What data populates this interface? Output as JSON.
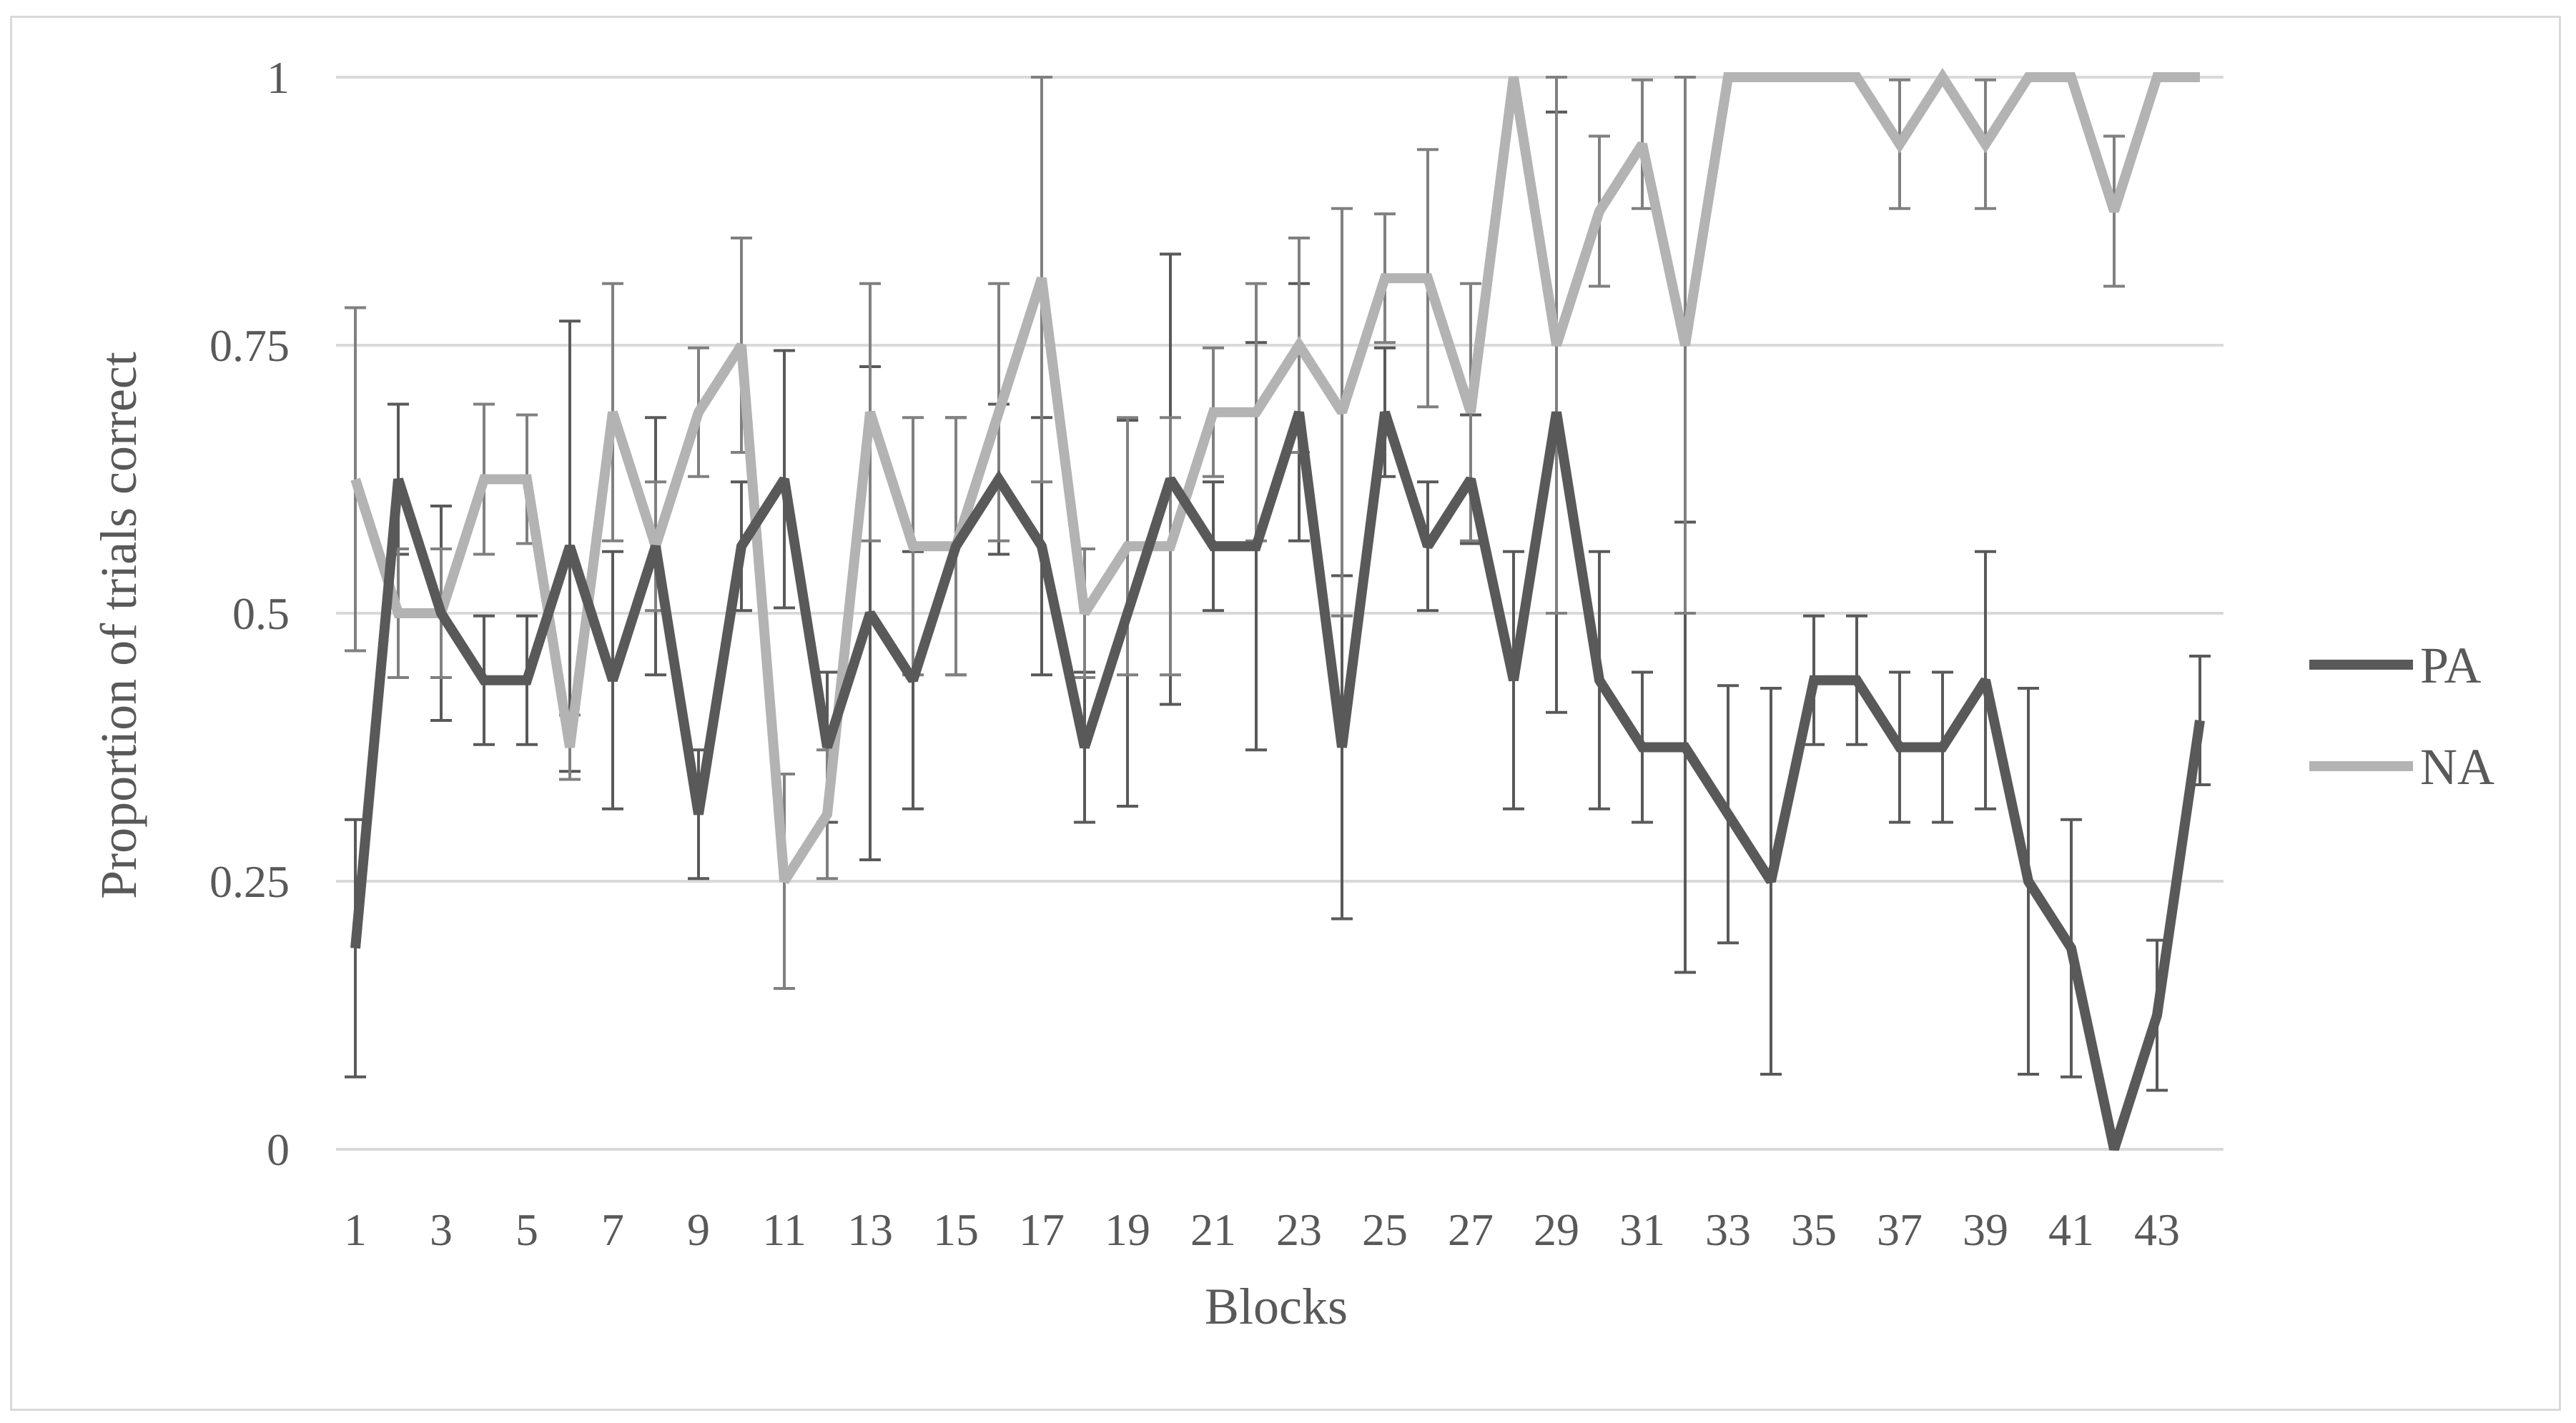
{
  "chart_data": {
    "type": "line",
    "title": "",
    "xlabel": "Blocks",
    "ylabel": "Proportion of trials correct",
    "x": [
      1,
      2,
      3,
      4,
      5,
      6,
      7,
      8,
      9,
      10,
      11,
      12,
      13,
      14,
      15,
      16,
      17,
      18,
      19,
      20,
      21,
      22,
      23,
      24,
      25,
      26,
      27,
      28,
      29,
      30,
      31,
      32,
      33,
      34,
      35,
      36,
      37,
      38,
      39,
      40,
      41,
      42,
      43,
      44
    ],
    "x_tick_labels": [
      "1",
      "3",
      "5",
      "7",
      "9",
      "11",
      "13",
      "15",
      "17",
      "19",
      "21",
      "23",
      "25",
      "27",
      "29",
      "31",
      "33",
      "35",
      "37",
      "39",
      "41",
      "43"
    ],
    "y_tick_labels": [
      "0",
      "0.25",
      "0.5",
      "0.75",
      "1"
    ],
    "ylim": [
      0,
      1
    ],
    "grid": "horizontal",
    "legend_position": "right",
    "series": [
      {
        "name": "PA",
        "color": "#595959",
        "values": [
          0.1875,
          0.625,
          0.5,
          0.4375,
          0.4375,
          0.5625,
          0.4375,
          0.5625,
          0.3125,
          0.5625,
          0.625,
          0.375,
          0.5,
          0.4375,
          0.5625,
          0.625,
          0.5625,
          0.375,
          0.5,
          0.625,
          0.5625,
          0.5625,
          0.6875,
          0.375,
          0.6875,
          0.5625,
          0.625,
          0.4375,
          0.6875,
          0.4375,
          0.375,
          0.375,
          0.3125,
          0.25,
          0.4375,
          0.4375,
          0.375,
          0.375,
          0.4375,
          0.25,
          0.1875,
          0.0,
          0.125,
          0.4
        ],
        "error": [
          0.12,
          0.07,
          0.1,
          0.06,
          0.06,
          0.21,
          0.12,
          0.12,
          0.06,
          0.06,
          0.12,
          0.07,
          0.23,
          0.12,
          0.12,
          0.07,
          0.12,
          0.07,
          0.18,
          0.21,
          0.06,
          0.19,
          0.12,
          0.16,
          0.06,
          0.06,
          0.06,
          0.12,
          0.28,
          0.12,
          0.07,
          0.21,
          0.12,
          0.18,
          0.06,
          0.06,
          0.07,
          0.07,
          0.12,
          0.18,
          0.12,
          0.0,
          0.07,
          0.06
        ]
      },
      {
        "name": "NA",
        "color": "#b3b3b3",
        "values": [
          0.625,
          0.5,
          0.5,
          0.625,
          0.625,
          0.375,
          0.6875,
          0.5625,
          0.6875,
          0.75,
          0.25,
          0.3125,
          0.6875,
          0.5625,
          0.5625,
          0.6875,
          0.8125,
          0.5,
          0.5625,
          0.5625,
          0.6875,
          0.6875,
          0.75,
          0.6875,
          0.8125,
          0.8125,
          0.6875,
          1.0,
          0.75,
          0.875,
          0.9375,
          0.75,
          1.0,
          1.0,
          1.0,
          1.0,
          0.9375,
          1.0,
          0.9375,
          1.0,
          1.0,
          0.875,
          1.0,
          1.0
        ],
        "error": [
          0.16,
          0.06,
          0.06,
          0.07,
          0.06,
          0.03,
          0.12,
          0.06,
          0.06,
          0.1,
          0.1,
          0.06,
          0.12,
          0.12,
          0.12,
          0.12,
          0.19,
          0.06,
          0.12,
          0.12,
          0.06,
          0.12,
          0.1,
          0.19,
          0.06,
          0.12,
          0.12,
          0.0,
          0.25,
          0.07,
          0.06,
          0.25,
          0.0,
          0.0,
          0.0,
          0.0,
          0.06,
          0.0,
          0.06,
          0.0,
          0.0,
          0.07,
          0.0,
          0.0
        ]
      }
    ]
  }
}
